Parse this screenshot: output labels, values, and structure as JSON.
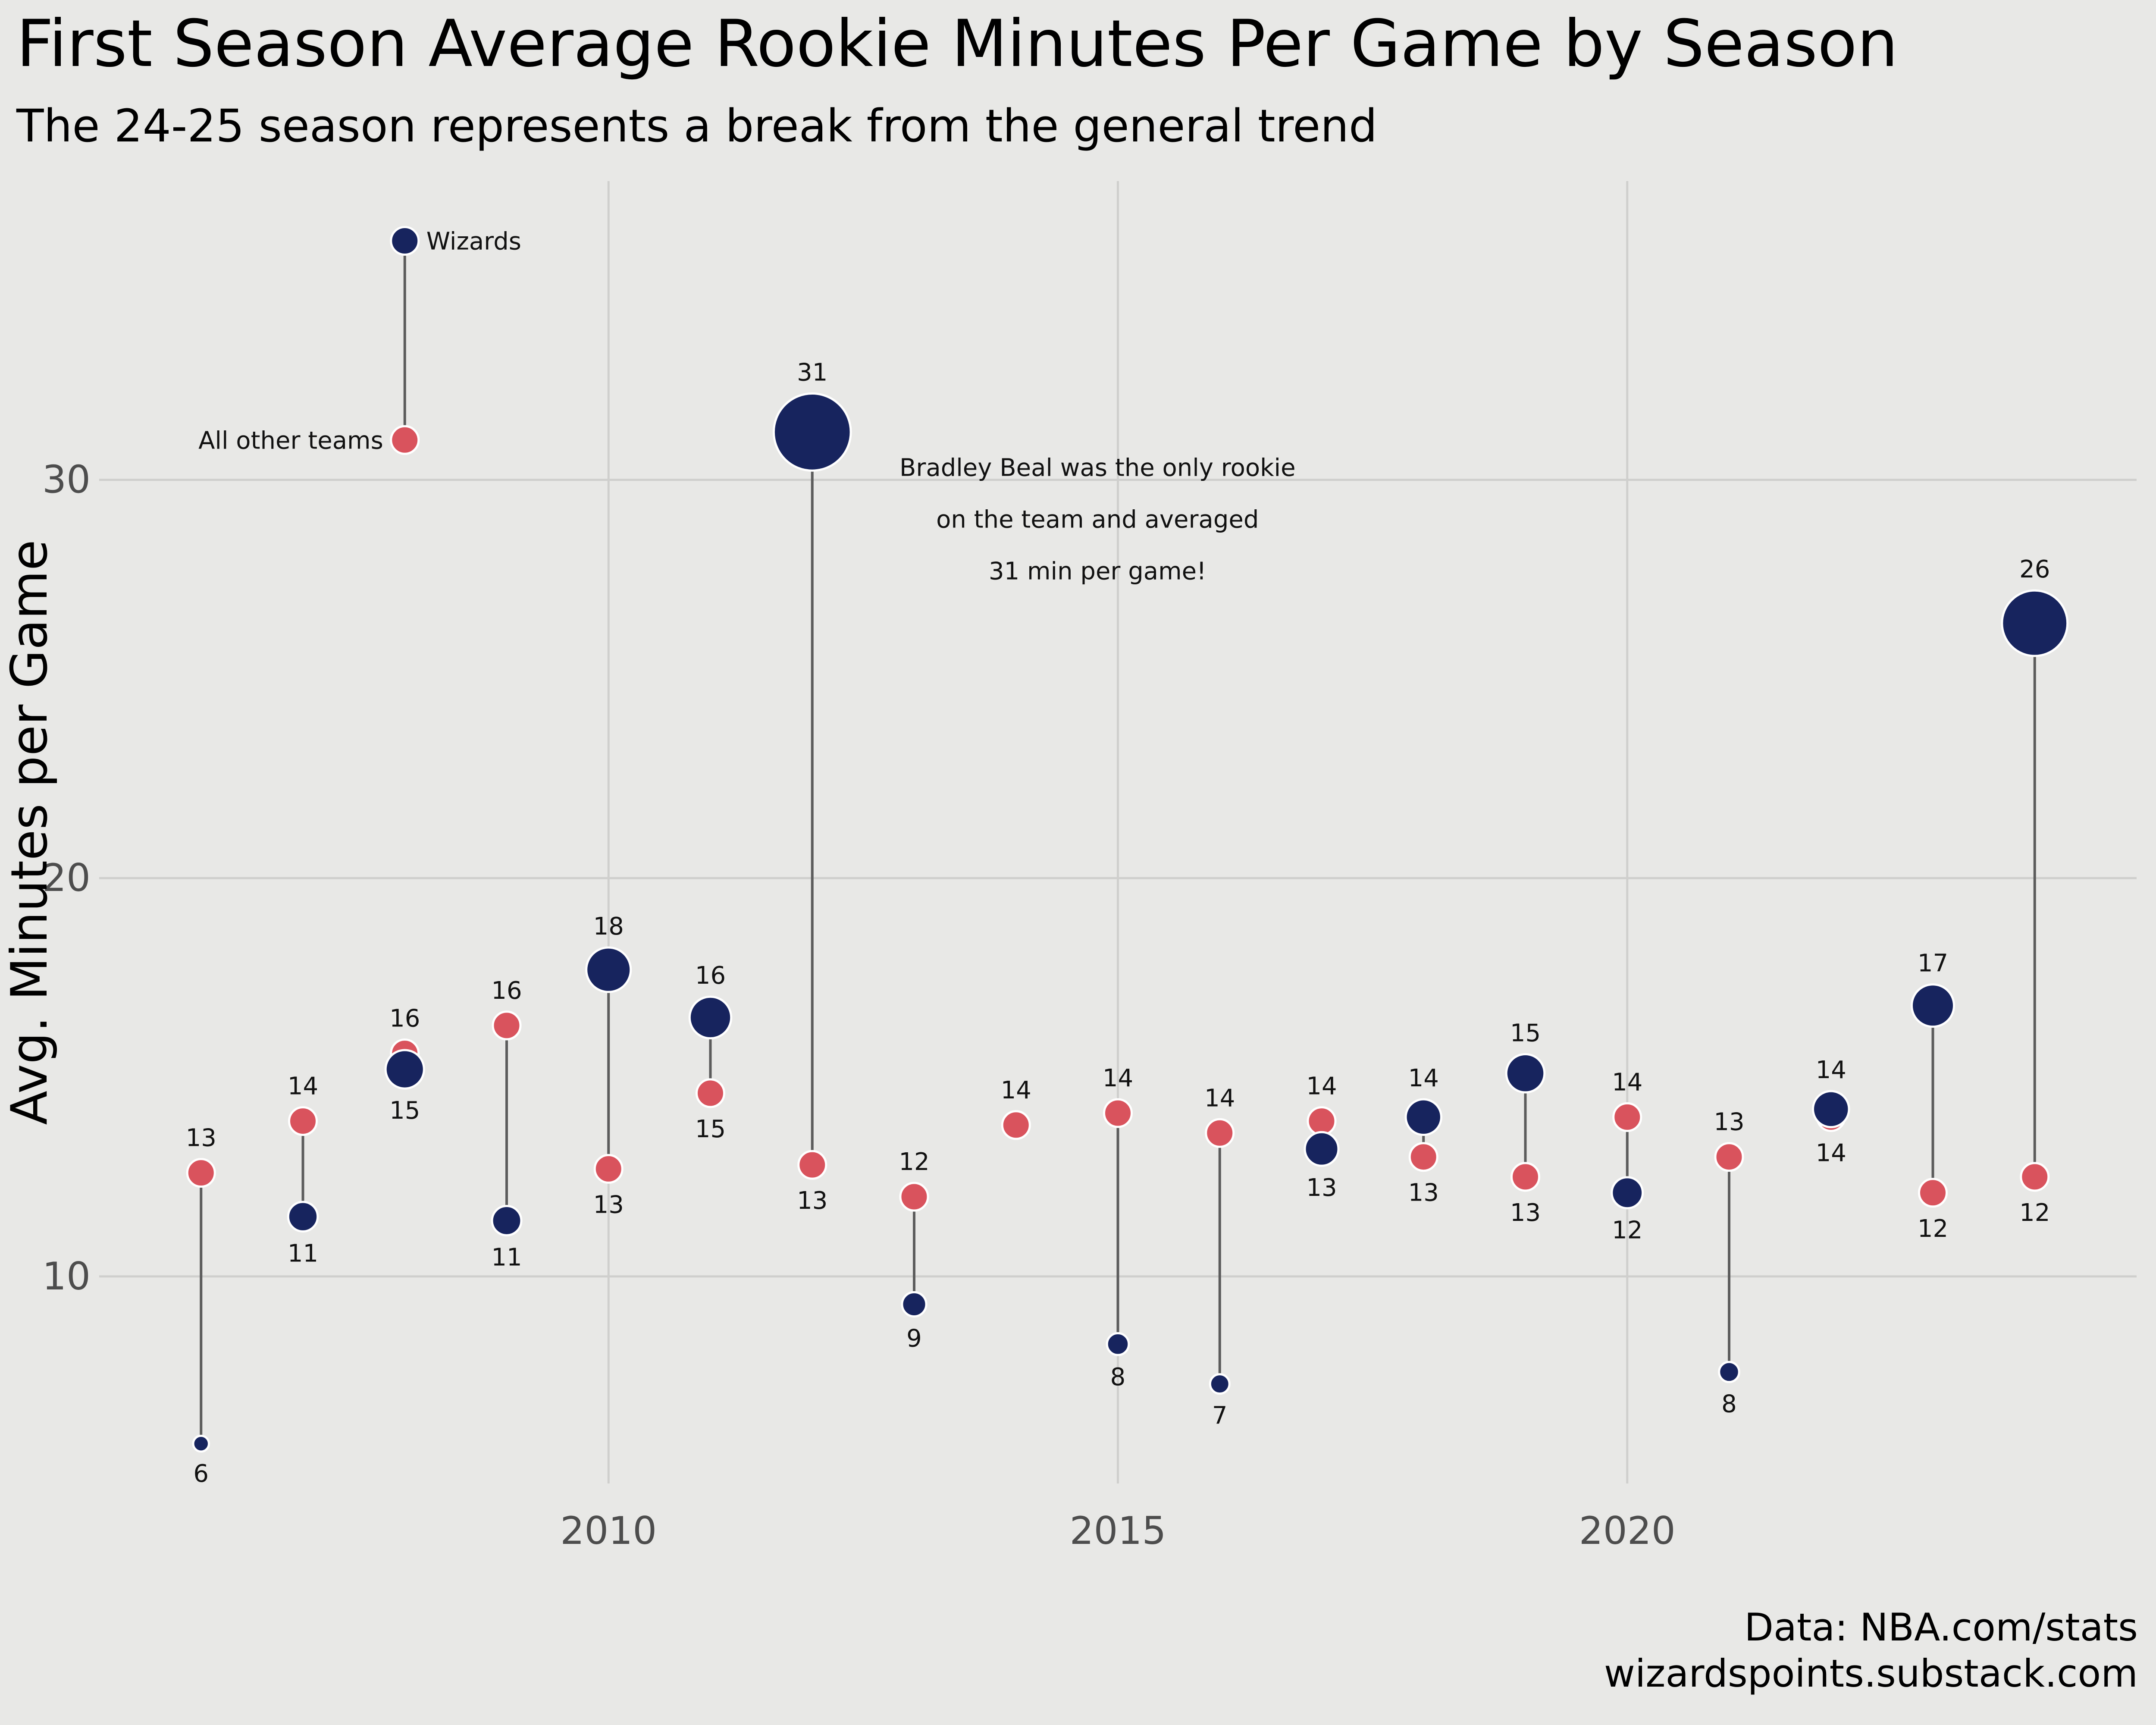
{
  "chart_data": {
    "type": "dumbbell",
    "title": "First Season Average Rookie Minutes Per Game by Season",
    "subtitle": "The 24-25 season represents a break from the general trend",
    "xlabel": "",
    "ylabel": "Avg. Minutes per Game",
    "xlim": [
      2005,
      2025
    ],
    "ylim": [
      4.8,
      37.5
    ],
    "x_ticks": [
      2010,
      2015,
      2020
    ],
    "y_ticks": [
      10,
      20,
      30
    ],
    "grid": true,
    "colors": {
      "wizards": "#17245e",
      "others": "#d9535d",
      "connector": "#5c5c5c",
      "background": "#e8e8e6",
      "grid": "#cfcfcd"
    },
    "series": [
      {
        "name": "Wizards",
        "color": "#17245e",
        "labels": [
          "6",
          "11",
          "15",
          "11",
          "18",
          "16",
          "31",
          "9",
          "",
          "8",
          "7",
          "13",
          "14",
          "15",
          "12",
          "8",
          "14",
          "17",
          "26"
        ]
      },
      {
        "name": "All other teams",
        "color": "#d9535d",
        "labels": [
          "13",
          "14",
          "16",
          "16",
          "13",
          "15",
          "13",
          "12",
          "14",
          "14",
          "14",
          "14",
          "13",
          "13",
          "14",
          "13",
          "14",
          "12",
          "12"
        ]
      }
    ],
    "points": [
      {
        "season": 2006,
        "wizards": 5.8,
        "others": 12.6
      },
      {
        "season": 2007,
        "wizards": 11.5,
        "others": 13.9
      },
      {
        "season": 2008,
        "wizards": 15.2,
        "others": 15.6
      },
      {
        "season": 2009,
        "wizards": 11.4,
        "others": 16.3
      },
      {
        "season": 2010,
        "wizards": 17.7,
        "others": 12.7
      },
      {
        "season": 2011,
        "wizards": 16.5,
        "others": 14.6
      },
      {
        "season": 2012,
        "wizards": 31.2,
        "others": 12.8
      },
      {
        "season": 2013,
        "wizards": 9.3,
        "others": 12.0
      },
      {
        "season": 2014,
        "wizards": null,
        "others": 13.8
      },
      {
        "season": 2015,
        "wizards": 8.3,
        "others": 14.1
      },
      {
        "season": 2016,
        "wizards": 7.3,
        "others": 13.6
      },
      {
        "season": 2017,
        "wizards": 13.2,
        "others": 13.9
      },
      {
        "season": 2018,
        "wizards": 14.0,
        "others": 13.0
      },
      {
        "season": 2019,
        "wizards": 15.1,
        "others": 12.5
      },
      {
        "season": 2020,
        "wizards": 12.1,
        "others": 14.0
      },
      {
        "season": 2021,
        "wizards": 7.6,
        "others": 13.0
      },
      {
        "season": 2022,
        "wizards": 14.2,
        "others": 14.0
      },
      {
        "season": 2023,
        "wizards": 16.8,
        "others": 12.1
      },
      {
        "season": 2024,
        "wizards": 26.4,
        "others": 12.5
      }
    ],
    "legend": {
      "wizards_label": "Wizards",
      "others_label": "All other teams",
      "wizards_y": 36.0,
      "others_y": 31.0,
      "season": 2008
    },
    "annotation": {
      "lines": [
        "Bradley Beal was the only rookie",
        "on the team and averaged",
        "31 min per game!"
      ],
      "season": 2014.8,
      "y": 30.1
    }
  },
  "caption": {
    "source": "Data: NBA.com/stats",
    "site": "wizardspoints.substack.com"
  }
}
